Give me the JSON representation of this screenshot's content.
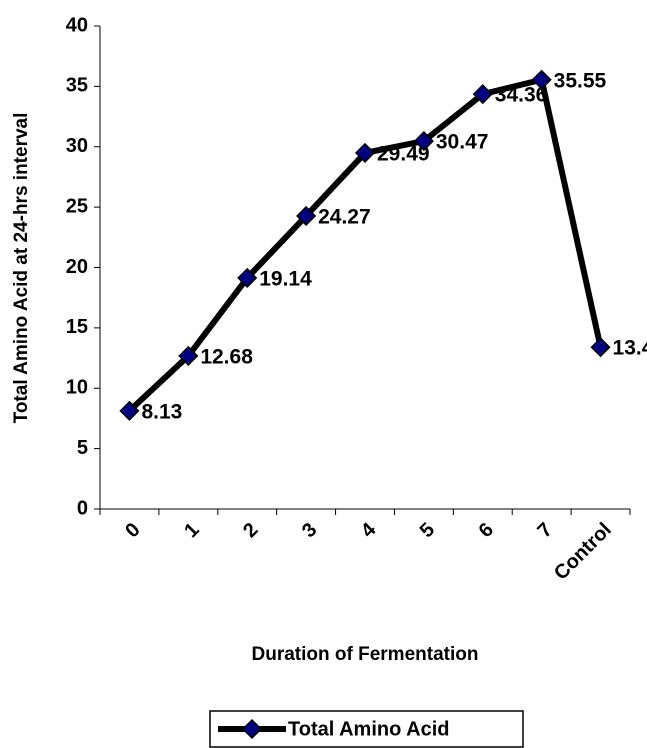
{
  "chart_data": {
    "type": "line",
    "x_label": "Duration of Fermentation",
    "y_label": "Total Amino Acid at 24-hrs interval",
    "categories": [
      "0",
      "1",
      "2",
      "3",
      "4",
      "5",
      "6",
      "7",
      "Control"
    ],
    "series": [
      {
        "name": "Total Amino Acid",
        "color": "#000000",
        "marker_color": "#000080",
        "values": [
          8.13,
          12.68,
          19.14,
          24.27,
          29.49,
          30.47,
          34.36,
          35.55,
          13.4
        ]
      }
    ],
    "ylim": [
      0,
      40
    ],
    "yticks": [
      0,
      5,
      10,
      15,
      20,
      25,
      30,
      35,
      40
    ],
    "data_labels": true,
    "legend": "bottom"
  }
}
